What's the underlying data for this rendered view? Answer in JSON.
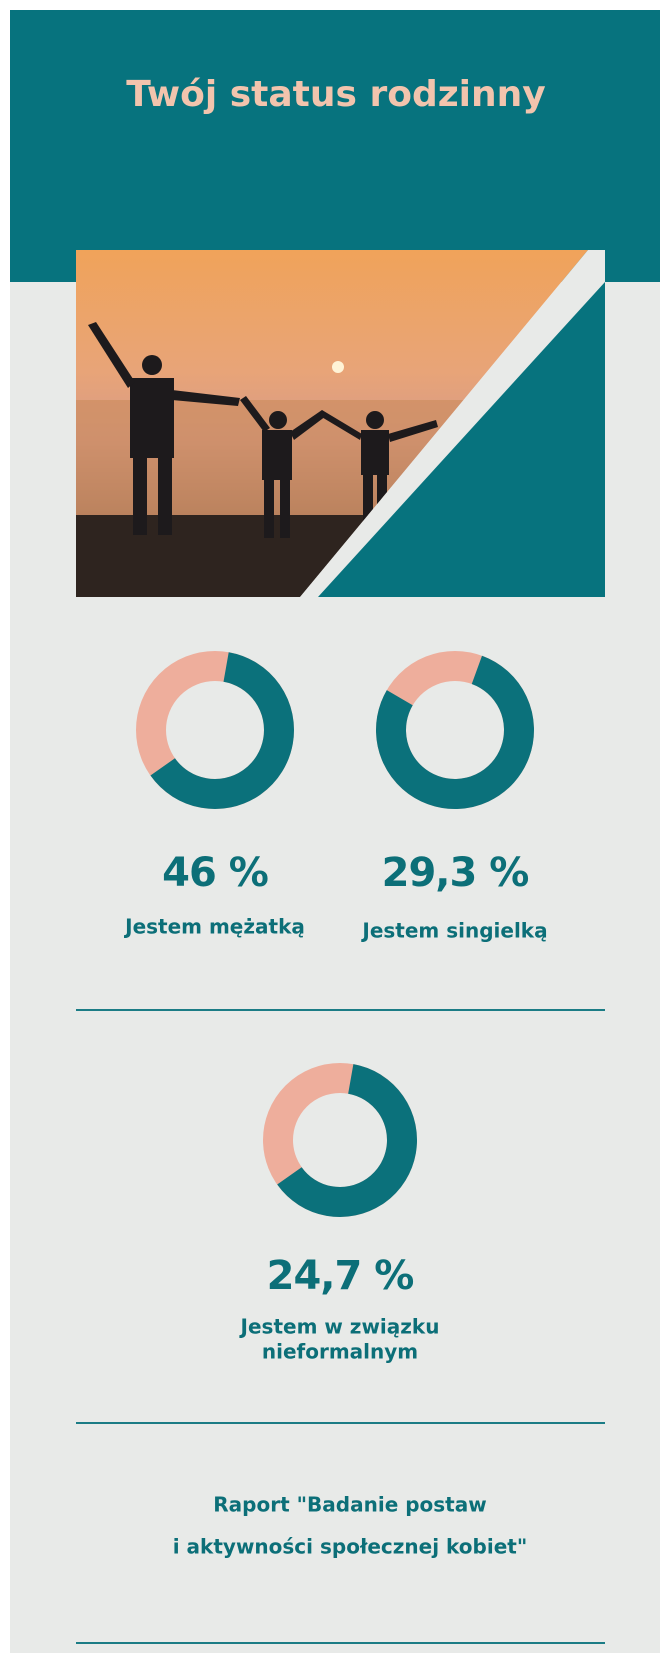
{
  "header": {
    "title": "Twój status rodzinny"
  },
  "stats": [
    {
      "value": "46 %",
      "label": [
        "Jestem mężatką"
      ]
    },
    {
      "value": "29,3 %",
      "label": [
        "Jestem singielką"
      ]
    },
    {
      "value": "24,7 %",
      "label": [
        "Jestem w związku",
        "nieformalnym"
      ]
    }
  ],
  "footer": {
    "lines": [
      "Raport \"Badanie postaw",
      "i aktywności społecznej kobiet\""
    ]
  }
}
